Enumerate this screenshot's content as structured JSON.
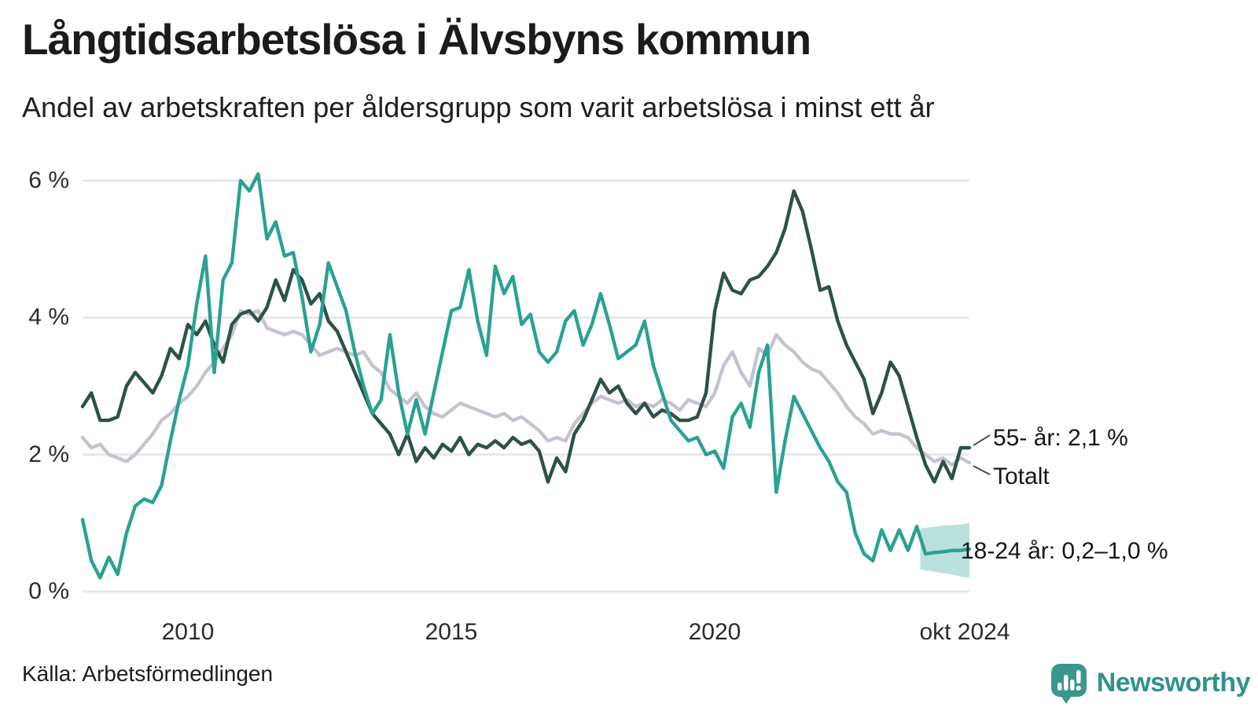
{
  "header": {
    "title": "Långtidsarbetslösa i Älvsbyns kommun",
    "subtitle": "Andel av arbetskraften per åldersgrupp som varit arbetslösa i minst ett år"
  },
  "source": "Källa: Arbetsförmedlingen",
  "branding": {
    "logo_text": "Newsworthy",
    "logo_icon": "newsworthy-speech-bubble-bar-chart-icon",
    "logo_color": "#2F938A",
    "icon_color": "#3B968C"
  },
  "colors": {
    "age_55_plus": "#2D5247",
    "total": "#C5C3CF",
    "age_18_24": "#2AA193",
    "band_fill": "#2AA193",
    "gridline": "#E8E8EC",
    "leader_line": "#4a4a4a"
  },
  "chart_data": {
    "type": "line",
    "title": "Långtidsarbetslösa i Älvsbyns kommun",
    "subtitle": "Andel av arbetskraften per åldersgrupp som varit arbetslösa i minst ett år",
    "x_axis": {
      "unit": "år (månadsvärden)",
      "start_year": 2008.0,
      "end_year": 2024.833,
      "ticks": [
        "2010",
        "2015",
        "2020",
        "okt 2024"
      ],
      "tick_years": [
        2010,
        2015,
        2020,
        2024.79
      ]
    },
    "y_axis": {
      "unit": "% av arbetskraften",
      "range": [
        0,
        6.3
      ],
      "grid": true,
      "ticks": [
        "6 %",
        "4 %",
        "2 %",
        "0 %"
      ],
      "tick_values": [
        6,
        4,
        2,
        0
      ]
    },
    "sampling_note": "values estimated from figure at two-month resolution, 2008 to okt 2024",
    "series": [
      {
        "name": "55- år",
        "color": "#2D5247",
        "end_label": "55- år: 2,1 %",
        "values": [
          2.7,
          2.9,
          2.5,
          2.5,
          2.55,
          3.0,
          3.2,
          3.05,
          2.9,
          3.15,
          3.55,
          3.4,
          3.9,
          3.75,
          3.95,
          3.6,
          3.35,
          3.9,
          4.05,
          4.1,
          3.95,
          4.15,
          4.55,
          4.25,
          4.7,
          4.55,
          4.2,
          4.35,
          3.95,
          3.8,
          3.5,
          3.2,
          2.9,
          2.6,
          2.45,
          2.3,
          2.0,
          2.3,
          1.9,
          2.1,
          1.95,
          2.15,
          2.05,
          2.25,
          2.0,
          2.15,
          2.1,
          2.2,
          2.1,
          2.25,
          2.15,
          2.2,
          2.05,
          1.6,
          1.95,
          1.75,
          2.3,
          2.5,
          2.8,
          3.1,
          2.9,
          3.0,
          2.75,
          2.6,
          2.75,
          2.55,
          2.65,
          2.6,
          2.5,
          2.5,
          2.55,
          2.9,
          4.1,
          4.65,
          4.4,
          4.35,
          4.55,
          4.6,
          4.75,
          4.95,
          5.3,
          5.85,
          5.55,
          5.0,
          4.4,
          4.45,
          3.95,
          3.6,
          3.35,
          3.1,
          2.6,
          2.9,
          3.35,
          3.15,
          2.7,
          2.25,
          1.85,
          1.6,
          1.9,
          1.65,
          2.1,
          2.1
        ]
      },
      {
        "name": "Totalt",
        "color": "#C5C3CF",
        "end_label": "Totalt",
        "values": [
          2.25,
          2.1,
          2.15,
          2.0,
          1.95,
          1.9,
          2.0,
          2.15,
          2.3,
          2.5,
          2.6,
          2.75,
          2.85,
          3.0,
          3.2,
          3.35,
          3.55,
          3.75,
          4.1,
          4.05,
          4.1,
          3.85,
          3.8,
          3.75,
          3.8,
          3.75,
          3.6,
          3.45,
          3.5,
          3.55,
          3.5,
          3.45,
          3.5,
          3.3,
          3.2,
          2.95,
          2.85,
          2.75,
          2.9,
          2.7,
          2.6,
          2.55,
          2.65,
          2.75,
          2.7,
          2.65,
          2.6,
          2.55,
          2.6,
          2.5,
          2.55,
          2.45,
          2.35,
          2.2,
          2.25,
          2.2,
          2.45,
          2.6,
          2.75,
          2.85,
          2.8,
          2.75,
          2.8,
          2.7,
          2.75,
          2.7,
          2.8,
          2.75,
          2.65,
          2.8,
          2.75,
          2.7,
          2.9,
          3.3,
          3.5,
          3.2,
          3.0,
          3.55,
          3.45,
          3.75,
          3.6,
          3.5,
          3.35,
          3.25,
          3.2,
          3.05,
          2.9,
          2.7,
          2.55,
          2.45,
          2.3,
          2.35,
          2.3,
          2.3,
          2.25,
          2.1,
          2.0,
          1.9,
          1.95,
          1.85,
          1.95,
          1.88
        ]
      },
      {
        "name": "18-24 år",
        "color": "#2AA193",
        "end_label": "18-24 år: 0,2–1,0 %",
        "values": [
          1.05,
          0.45,
          0.2,
          0.5,
          0.25,
          0.85,
          1.25,
          1.35,
          1.3,
          1.55,
          2.2,
          2.8,
          3.3,
          4.2,
          4.9,
          3.2,
          4.55,
          4.8,
          6.0,
          5.85,
          6.1,
          5.15,
          5.4,
          4.9,
          4.95,
          4.3,
          3.5,
          3.9,
          4.8,
          4.45,
          4.1,
          3.5,
          3.0,
          2.6,
          2.8,
          3.75,
          2.9,
          2.3,
          2.8,
          2.3,
          2.9,
          3.5,
          4.1,
          4.15,
          4.7,
          3.95,
          3.45,
          4.75,
          4.35,
          4.6,
          3.9,
          4.05,
          3.5,
          3.35,
          3.5,
          3.95,
          4.1,
          3.6,
          3.9,
          4.35,
          3.9,
          3.4,
          3.5,
          3.6,
          3.95,
          3.3,
          2.9,
          2.5,
          2.35,
          2.2,
          2.25,
          2.0,
          2.05,
          1.8,
          2.55,
          2.75,
          2.4,
          3.2,
          3.6,
          1.45,
          2.2,
          2.85,
          2.6,
          2.35,
          2.1,
          1.9,
          1.6,
          1.45,
          0.85,
          0.55,
          0.45,
          0.9,
          0.6,
          0.9,
          0.6,
          0.95,
          0.55,
          0.57,
          0.58,
          0.6,
          0.6,
          0.62
        ]
      }
    ],
    "uncertainty_band": {
      "series": "18-24 år",
      "label": "0,2–1,0 %",
      "opacity": 0.32,
      "years": [
        2023.9,
        2024.1,
        2024.3,
        2024.5,
        2024.67,
        2024.833
      ],
      "low": [
        0.32,
        0.3,
        0.27,
        0.25,
        0.22,
        0.2
      ],
      "high": [
        0.92,
        0.94,
        0.96,
        0.97,
        0.98,
        1.0
      ]
    },
    "annotations": [
      {
        "label": "55- år: 2,1 %",
        "series": "55- år",
        "value_text": "2,1 %"
      },
      {
        "label": "Totalt",
        "series": "Totalt"
      },
      {
        "label": "18-24 år: 0,2–1,0 %",
        "series": "18-24 år",
        "value_text": "0,2–1,0 %"
      }
    ],
    "legend_position": "end-of-line labels, right side"
  }
}
